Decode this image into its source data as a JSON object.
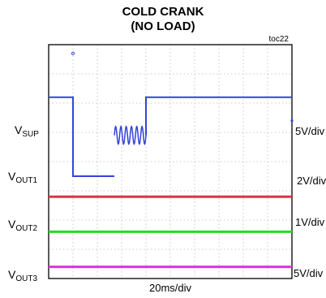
{
  "header": {
    "title_line1": "COLD CRANK",
    "title_line2": "(NO LOAD)",
    "figure_id": "toc22"
  },
  "channels": [
    {
      "label_main": "V",
      "label_sub": "SUP",
      "scale": "5V/div",
      "color": "#3344dd"
    },
    {
      "label_main": "V",
      "label_sub": "OUT1",
      "scale": "2V/div",
      "color": "#dd3344"
    },
    {
      "label_main": "V",
      "label_sub": "OUT2",
      "scale": "1V/div",
      "color": "#22dd22"
    },
    {
      "label_main": "V",
      "label_sub": "OUT3",
      "scale": "5V/div",
      "color": "#dd33dd"
    }
  ],
  "timebase": "20ms/div",
  "chart_data": {
    "type": "line",
    "title": "COLD CRANK (NO LOAD)",
    "xlabel": "20ms/div",
    "grid": true,
    "x_divisions": 10,
    "y_divisions": 8,
    "x_unit": "ms",
    "xlim": [
      0,
      200
    ],
    "series": [
      {
        "name": "VSUP",
        "color": "#3344dd",
        "scale": "5V/div",
        "description_points": [
          {
            "t": 0,
            "level": "high"
          },
          {
            "t": 20,
            "level": "drop"
          },
          {
            "t": 54,
            "level": "low"
          },
          {
            "t": 54,
            "level": "ripple"
          },
          {
            "t": 80,
            "level": "ripple-end"
          },
          {
            "t": 200,
            "level": "high"
          }
        ],
        "x": [
          0,
          20,
          20,
          54,
          54,
          80,
          80,
          200
        ],
        "y_div": [
          6.2,
          6.2,
          3.5,
          3.5,
          4.9,
          4.9,
          6.2,
          6.2
        ]
      },
      {
        "name": "VOUT1",
        "color": "#dd3344",
        "scale": "2V/div",
        "x": [
          0,
          200
        ],
        "y_div": [
          2.8,
          2.8
        ]
      },
      {
        "name": "VOUT2",
        "color": "#22dd22",
        "scale": "1V/div",
        "x": [
          0,
          200
        ],
        "y_div": [
          1.6,
          1.6
        ]
      },
      {
        "name": "VOUT3",
        "color": "#dd33dd",
        "scale": "5V/div",
        "x": [
          0,
          200
        ],
        "y_div": [
          0.4,
          0.4
        ]
      }
    ]
  }
}
